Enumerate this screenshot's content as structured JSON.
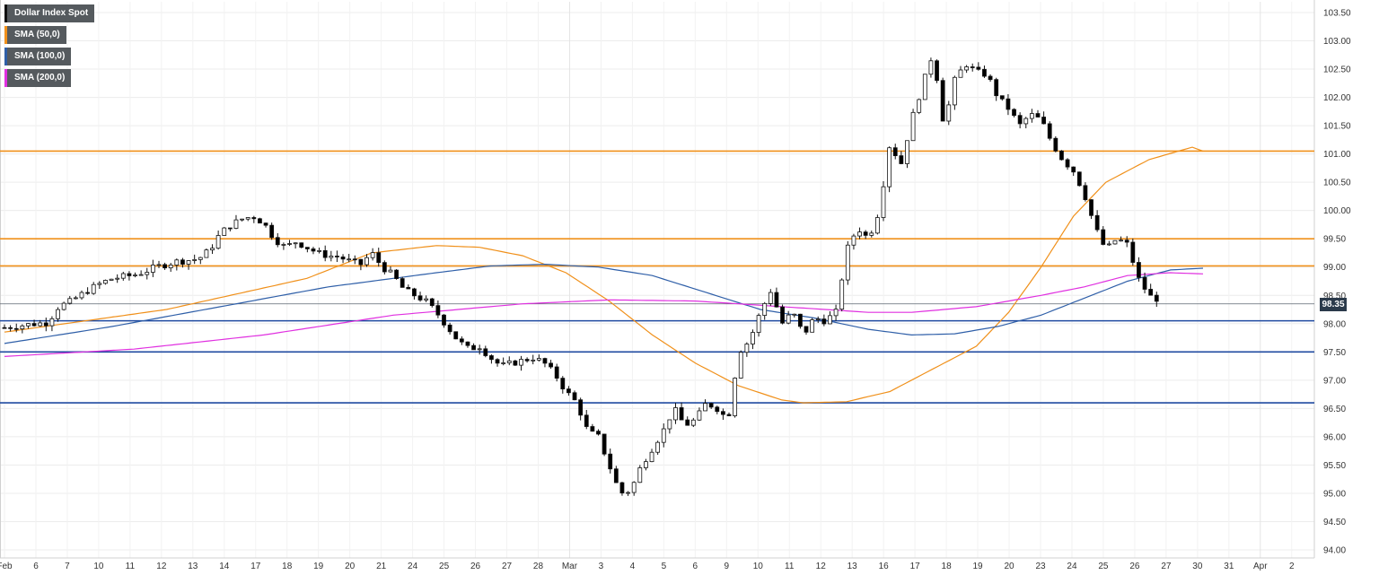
{
  "legend": {
    "items": [
      {
        "label": "Dollar Index Spot",
        "color": "#111111"
      },
      {
        "label": "SMA (50,0)",
        "color": "#f0901a"
      },
      {
        "label": "SMA (100,0)",
        "color": "#2f5fa8"
      },
      {
        "label": "SMA (200,0)",
        "color": "#e030e0"
      }
    ]
  },
  "last_price": {
    "label": "98.35",
    "value": 98.35,
    "color": "#2b3a4b"
  },
  "chart_data": {
    "type": "candlestick",
    "instrument": "Dollar Index Spot",
    "timeframe": "hourly",
    "ylim": [
      94.0,
      103.5
    ],
    "y_ticks": [
      "94.00",
      "94.50",
      "95.00",
      "95.50",
      "96.00",
      "96.50",
      "97.00",
      "97.50",
      "98.00",
      "98.50",
      "99.00",
      "99.50",
      "100.00",
      "100.50",
      "101.00",
      "101.50",
      "102.00",
      "102.50",
      "103.00",
      "103.50"
    ],
    "x_ticks": [
      "Feb",
      "6",
      "7",
      "10",
      "11",
      "12",
      "13",
      "14",
      "17",
      "18",
      "19",
      "20",
      "21",
      "24",
      "25",
      "26",
      "27",
      "28",
      "Mar",
      "3",
      "4",
      "5",
      "6",
      "9",
      "10",
      "11",
      "12",
      "13",
      "16",
      "17",
      "18",
      "19",
      "20",
      "23",
      "24",
      "25",
      "26",
      "27",
      "30",
      "31",
      "Apr",
      "2"
    ],
    "grid": true,
    "resistance_levels": [
      101.05,
      99.5,
      99.02
    ],
    "resistance_color": "#f0901a",
    "support_levels": [
      98.05,
      97.5,
      96.6
    ],
    "support_color": "#1f4aa0",
    "last_price_line": 98.35,
    "candle_colors": {
      "up": "#ffffff",
      "down": "#000000"
    },
    "close_path": [
      [
        0,
        97.93
      ],
      [
        2,
        97.98
      ],
      [
        4,
        98.02
      ],
      [
        5,
        98.3
      ],
      [
        6,
        98.38
      ],
      [
        7,
        98.5
      ],
      [
        8,
        98.62
      ],
      [
        9,
        98.72
      ],
      [
        10,
        98.8
      ],
      [
        11,
        98.83
      ],
      [
        12,
        98.86
      ],
      [
        13,
        98.92
      ],
      [
        14,
        99.0
      ],
      [
        15,
        99.05
      ],
      [
        16,
        99.1
      ],
      [
        17,
        99.12
      ],
      [
        18,
        99.15
      ],
      [
        19,
        99.3
      ],
      [
        20,
        99.6
      ],
      [
        21,
        99.75
      ],
      [
        22,
        99.85
      ],
      [
        23,
        99.9
      ],
      [
        24,
        99.78
      ],
      [
        25,
        99.5
      ],
      [
        26,
        99.35
      ],
      [
        27,
        99.45
      ],
      [
        28,
        99.35
      ],
      [
        29,
        99.25
      ],
      [
        30,
        99.2
      ],
      [
        31,
        99.18
      ],
      [
        32,
        99.1
      ],
      [
        33,
        99.05
      ],
      [
        34,
        99.25
      ],
      [
        35,
        99.0
      ],
      [
        36,
        98.85
      ],
      [
        37,
        98.6
      ],
      [
        38,
        98.5
      ],
      [
        39,
        98.4
      ],
      [
        40,
        98.2
      ],
      [
        41,
        97.95
      ],
      [
        42,
        97.7
      ],
      [
        43,
        97.55
      ],
      [
        44,
        97.6
      ],
      [
        45,
        97.4
      ],
      [
        46,
        97.25
      ],
      [
        47,
        97.3
      ],
      [
        48,
        97.35
      ],
      [
        49,
        97.4
      ],
      [
        50,
        97.3
      ],
      [
        51,
        97.1
      ],
      [
        52,
        96.8
      ],
      [
        53,
        96.6
      ],
      [
        54,
        96.1
      ],
      [
        55,
        96.0
      ],
      [
        56,
        95.5
      ],
      [
        57,
        95.0
      ],
      [
        58,
        95.05
      ],
      [
        59,
        95.5
      ],
      [
        60,
        95.8
      ],
      [
        61,
        96.1
      ],
      [
        62,
        96.5
      ],
      [
        63,
        96.2
      ],
      [
        64,
        96.3
      ],
      [
        65,
        96.6
      ],
      [
        66,
        96.5
      ],
      [
        67,
        96.3
      ],
      [
        68,
        97.5
      ],
      [
        69,
        97.7
      ],
      [
        70,
        98.2
      ],
      [
        71,
        98.6
      ],
      [
        72,
        98.0
      ],
      [
        73,
        98.2
      ],
      [
        74,
        97.8
      ],
      [
        75,
        98.1
      ],
      [
        76,
        98.05
      ],
      [
        77,
        98.2
      ],
      [
        78,
        99.3
      ],
      [
        79,
        99.7
      ],
      [
        80,
        99.5
      ],
      [
        81,
        100.0
      ],
      [
        82,
        101.2
      ],
      [
        83,
        100.8
      ],
      [
        84,
        101.6
      ],
      [
        85,
        102.2
      ],
      [
        86,
        102.8
      ],
      [
        87,
        101.5
      ],
      [
        88,
        102.3
      ],
      [
        89,
        102.6
      ],
      [
        90,
        102.45
      ],
      [
        91,
        102.4
      ],
      [
        92,
        102.0
      ],
      [
        93,
        101.8
      ],
      [
        94,
        101.5
      ],
      [
        95,
        101.7
      ],
      [
        96,
        101.6
      ],
      [
        97,
        101.2
      ],
      [
        98,
        100.9
      ],
      [
        99,
        100.7
      ],
      [
        100,
        100.3
      ],
      [
        101,
        99.7
      ],
      [
        102,
        99.3
      ],
      [
        103,
        99.5
      ],
      [
        104,
        99.4
      ],
      [
        105,
        98.8
      ],
      [
        106,
        98.5
      ],
      [
        107,
        98.35
      ]
    ],
    "sma_50": [
      [
        0,
        97.85
      ],
      [
        15,
        98.25
      ],
      [
        28,
        98.8
      ],
      [
        34,
        99.25
      ],
      [
        40,
        99.38
      ],
      [
        44,
        99.35
      ],
      [
        48,
        99.2
      ],
      [
        52,
        98.9
      ],
      [
        56,
        98.4
      ],
      [
        60,
        97.8
      ],
      [
        64,
        97.3
      ],
      [
        68,
        96.9
      ],
      [
        72,
        96.65
      ],
      [
        74,
        96.6
      ],
      [
        78,
        96.62
      ],
      [
        82,
        96.8
      ],
      [
        86,
        97.2
      ],
      [
        90,
        97.6
      ],
      [
        93,
        98.2
      ],
      [
        96,
        99.0
      ],
      [
        99,
        99.9
      ],
      [
        102,
        100.5
      ],
      [
        106,
        100.9
      ],
      [
        110,
        101.12
      ],
      [
        111,
        101.05
      ]
    ],
    "sma_100": [
      [
        0,
        97.65
      ],
      [
        10,
        97.95
      ],
      [
        20,
        98.3
      ],
      [
        30,
        98.65
      ],
      [
        40,
        98.9
      ],
      [
        45,
        99.02
      ],
      [
        50,
        99.05
      ],
      [
        55,
        99.0
      ],
      [
        60,
        98.85
      ],
      [
        65,
        98.55
      ],
      [
        70,
        98.25
      ],
      [
        75,
        98.1
      ],
      [
        80,
        97.9
      ],
      [
        84,
        97.8
      ],
      [
        88,
        97.82
      ],
      [
        92,
        97.95
      ],
      [
        96,
        98.15
      ],
      [
        100,
        98.45
      ],
      [
        104,
        98.75
      ],
      [
        108,
        98.95
      ],
      [
        111,
        98.98
      ]
    ],
    "sma_200": [
      [
        0,
        97.42
      ],
      [
        12,
        97.55
      ],
      [
        24,
        97.8
      ],
      [
        36,
        98.15
      ],
      [
        48,
        98.35
      ],
      [
        56,
        98.42
      ],
      [
        64,
        98.4
      ],
      [
        72,
        98.3
      ],
      [
        80,
        98.2
      ],
      [
        84,
        98.2
      ],
      [
        90,
        98.3
      ],
      [
        96,
        98.5
      ],
      [
        100,
        98.65
      ],
      [
        104,
        98.85
      ],
      [
        108,
        98.9
      ],
      [
        111,
        98.88
      ]
    ]
  }
}
